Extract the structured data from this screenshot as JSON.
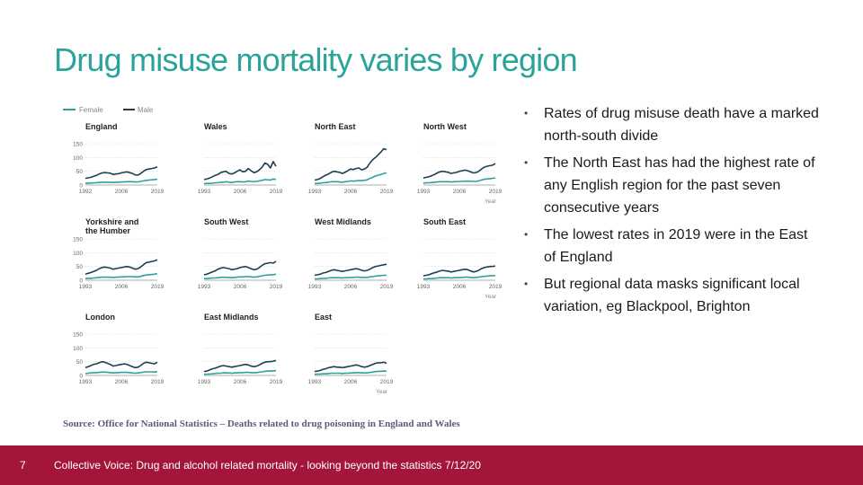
{
  "title": "Drug misuse mortality varies by region",
  "bullets": [
    "Rates of drug misuse death have a marked north-south divide",
    "The North East has had the highest rate of any English region for the past seven consecutive years",
    "The lowest rates in 2019 were in the East of England",
    "But regional data masks significant local variation, eg Blackpool, Brighton"
  ],
  "bullet_marker": "•",
  "source": "Source: Office for National Statistics – Deaths related to drug poisoning in England and Wales",
  "footer": {
    "page_number": "7",
    "text": "Collective Voice: Drug and alcohol related mortality - looking beyond the statistics 7/12/20"
  },
  "colors": {
    "title": "#2aa39a",
    "female": "#2aa39a",
    "male": "#1d3f52",
    "footer_bar": "#a31539"
  },
  "chart_data": {
    "type": "line",
    "layout": "small-multiples",
    "legend": [
      "Female",
      "Male"
    ],
    "legend_position": "top-left",
    "xlabel": "Year",
    "ylim": [
      0,
      150
    ],
    "y_ticks": [
      "150",
      "100",
      "50",
      "0"
    ],
    "x_ticks": [
      "1993",
      "2006",
      "2019"
    ],
    "x_ticks_first_panel": [
      "1992",
      "2006",
      "2019"
    ],
    "years": [
      1993,
      1994,
      1995,
      1996,
      1997,
      1998,
      1999,
      2000,
      2001,
      2002,
      2003,
      2004,
      2005,
      2006,
      2007,
      2008,
      2009,
      2010,
      2011,
      2012,
      2013,
      2014,
      2015,
      2016,
      2017,
      2018,
      2019
    ],
    "panels": [
      {
        "name": "England",
        "male": [
          24,
          26,
          28,
          32,
          35,
          40,
          44,
          45,
          44,
          43,
          38,
          40,
          41,
          44,
          46,
          48,
          45,
          42,
          37,
          36,
          42,
          50,
          56,
          58,
          60,
          62,
          66
        ],
        "female": [
          6,
          7,
          7,
          8,
          8,
          9,
          10,
          10,
          10,
          10,
          9,
          10,
          10,
          11,
          11,
          12,
          12,
          12,
          11,
          11,
          13,
          15,
          17,
          18,
          19,
          20,
          21
        ]
      },
      {
        "name": "Wales",
        "male": [
          20,
          22,
          25,
          30,
          35,
          38,
          45,
          48,
          50,
          42,
          40,
          44,
          50,
          55,
          48,
          50,
          60,
          52,
          45,
          48,
          55,
          65,
          80,
          75,
          62,
          85,
          68
        ],
        "female": [
          5,
          6,
          6,
          7,
          8,
          8,
          10,
          10,
          12,
          10,
          9,
          11,
          12,
          12,
          11,
          12,
          14,
          13,
          12,
          13,
          15,
          17,
          20,
          19,
          18,
          22,
          20
        ]
      },
      {
        "name": "North East",
        "male": [
          18,
          20,
          24,
          30,
          36,
          40,
          46,
          50,
          48,
          46,
          42,
          46,
          52,
          58,
          56,
          60,
          62,
          55,
          58,
          65,
          80,
          92,
          100,
          110,
          120,
          132,
          128
        ],
        "female": [
          5,
          6,
          7,
          8,
          9,
          10,
          12,
          12,
          12,
          11,
          10,
          12,
          13,
          15,
          14,
          15,
          16,
          16,
          17,
          19,
          24,
          28,
          33,
          36,
          38,
          42,
          44
        ]
      },
      {
        "name": "North West",
        "male": [
          25,
          28,
          30,
          34,
          38,
          44,
          48,
          50,
          48,
          46,
          42,
          44,
          46,
          50,
          52,
          54,
          52,
          48,
          44,
          45,
          50,
          58,
          65,
          68,
          70,
          72,
          78
        ],
        "female": [
          7,
          8,
          8,
          9,
          10,
          11,
          12,
          12,
          12,
          12,
          11,
          12,
          12,
          13,
          13,
          14,
          14,
          14,
          13,
          13,
          15,
          18,
          21,
          22,
          23,
          24,
          26
        ]
      },
      {
        "name": "Yorkshire and the Humber",
        "male": [
          22,
          25,
          28,
          32,
          36,
          42,
          46,
          48,
          46,
          44,
          40,
          42,
          44,
          46,
          48,
          50,
          48,
          44,
          40,
          42,
          48,
          56,
          64,
          66,
          68,
          70,
          74
        ],
        "female": [
          6,
          7,
          7,
          8,
          9,
          10,
          11,
          11,
          11,
          11,
          10,
          11,
          11,
          12,
          12,
          13,
          13,
          13,
          12,
          12,
          14,
          17,
          19,
          20,
          21,
          22,
          24
        ]
      },
      {
        "name": "South West",
        "male": [
          20,
          22,
          26,
          30,
          34,
          40,
          44,
          46,
          44,
          42,
          38,
          40,
          42,
          46,
          48,
          50,
          46,
          42,
          38,
          40,
          46,
          54,
          60,
          62,
          64,
          62,
          68
        ],
        "female": [
          6,
          6,
          7,
          8,
          8,
          9,
          10,
          11,
          10,
          10,
          9,
          10,
          11,
          12,
          12,
          13,
          13,
          12,
          11,
          12,
          14,
          16,
          18,
          19,
          20,
          20,
          22
        ]
      },
      {
        "name": "West Midlands",
        "male": [
          18,
          20,
          22,
          26,
          28,
          32,
          36,
          38,
          36,
          34,
          32,
          34,
          36,
          38,
          40,
          42,
          40,
          36,
          34,
          36,
          40,
          46,
          50,
          52,
          54,
          56,
          58
        ],
        "female": [
          5,
          5,
          6,
          7,
          7,
          8,
          9,
          9,
          9,
          9,
          8,
          9,
          9,
          10,
          10,
          11,
          11,
          10,
          10,
          10,
          12,
          13,
          15,
          16,
          17,
          18,
          18
        ]
      },
      {
        "name": "South East",
        "male": [
          16,
          18,
          20,
          24,
          27,
          30,
          34,
          36,
          34,
          33,
          30,
          32,
          34,
          36,
          38,
          40,
          38,
          34,
          30,
          32,
          36,
          42,
          46,
          48,
          50,
          50,
          52
        ],
        "female": [
          5,
          5,
          6,
          6,
          7,
          8,
          9,
          9,
          9,
          9,
          8,
          9,
          9,
          10,
          10,
          11,
          11,
          10,
          9,
          10,
          11,
          13,
          14,
          15,
          16,
          16,
          17
        ]
      },
      {
        "name": "London",
        "male": [
          28,
          32,
          36,
          40,
          42,
          46,
          50,
          48,
          44,
          40,
          34,
          36,
          38,
          40,
          42,
          40,
          36,
          32,
          28,
          30,
          36,
          44,
          48,
          46,
          44,
          42,
          48
        ],
        "female": [
          7,
          8,
          9,
          10,
          10,
          11,
          12,
          12,
          11,
          10,
          9,
          10,
          10,
          11,
          11,
          11,
          10,
          9,
          8,
          9,
          10,
          12,
          13,
          13,
          13,
          12,
          14
        ]
      },
      {
        "name": "East Midlands",
        "male": [
          14,
          16,
          20,
          24,
          26,
          30,
          34,
          36,
          34,
          32,
          30,
          32,
          34,
          36,
          38,
          40,
          38,
          34,
          32,
          34,
          38,
          44,
          48,
          50,
          50,
          52,
          54
        ],
        "female": [
          4,
          5,
          5,
          6,
          7,
          8,
          8,
          9,
          9,
          9,
          8,
          9,
          9,
          10,
          10,
          11,
          11,
          10,
          10,
          10,
          12,
          13,
          15,
          16,
          16,
          17,
          17
        ]
      },
      {
        "name": "East",
        "male": [
          14,
          16,
          18,
          22,
          24,
          28,
          30,
          32,
          30,
          30,
          28,
          30,
          32,
          34,
          36,
          38,
          36,
          32,
          30,
          32,
          36,
          40,
          44,
          46,
          46,
          48,
          44
        ],
        "female": [
          4,
          5,
          5,
          6,
          6,
          7,
          8,
          8,
          8,
          8,
          7,
          8,
          8,
          9,
          9,
          10,
          10,
          9,
          9,
          9,
          11,
          12,
          14,
          15,
          15,
          16,
          15
        ]
      }
    ]
  }
}
